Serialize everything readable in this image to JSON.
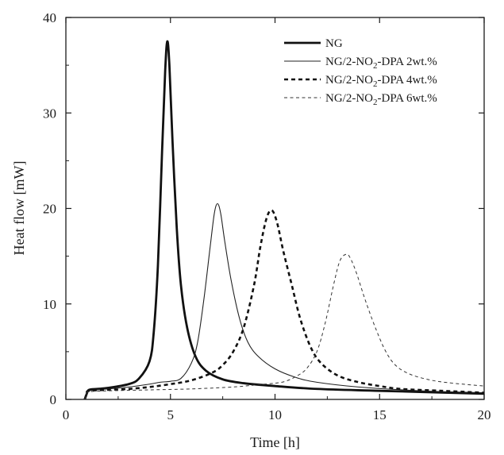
{
  "chart_data": {
    "type": "line",
    "title": "",
    "xlabel": "Time [h]",
    "ylabel": "Heat flow [mW]",
    "xlim": [
      0,
      20
    ],
    "ylim": [
      0,
      40
    ],
    "xticks": [
      "0",
      "5",
      "10",
      "15",
      "20"
    ],
    "yticks": [
      "0",
      "10",
      "20",
      "30",
      "40"
    ],
    "grid": false,
    "legend_position": "top-right",
    "series": [
      {
        "name": "NG",
        "legend_parts": [
          "NG",
          "",
          ""
        ],
        "style": "solid-thick",
        "color": "#111111",
        "x": [
          0.9,
          1.0,
          1.1,
          1.5,
          2.0,
          3.0,
          3.5,
          4.0,
          4.2,
          4.4,
          4.6,
          4.75,
          4.85,
          4.95,
          5.1,
          5.3,
          5.5,
          5.8,
          6.2,
          6.7,
          7.5,
          8.5,
          10,
          12,
          15,
          20
        ],
        "y": [
          0.0,
          0.6,
          1.0,
          1.1,
          1.2,
          1.6,
          2.2,
          4.0,
          7.0,
          14.0,
          26.0,
          34.5,
          37.5,
          35.0,
          27.0,
          18.0,
          12.0,
          7.5,
          4.5,
          3.0,
          2.1,
          1.7,
          1.4,
          1.1,
          0.9,
          0.6
        ]
      },
      {
        "name": "NG/2-NO₂-DPA 2wt.%",
        "legend_parts": [
          "NG/2-NO",
          "2",
          "-DPA 2wt.%"
        ],
        "style": "solid-thin",
        "color": "#222222",
        "x": [
          0.9,
          1.0,
          1.1,
          2.0,
          3.0,
          4.0,
          4.5,
          5.0,
          5.5,
          6.0,
          6.3,
          6.6,
          6.9,
          7.1,
          7.25,
          7.4,
          7.6,
          7.9,
          8.3,
          8.7,
          9.2,
          10,
          11,
          12,
          14,
          17,
          20
        ],
        "y": [
          0.0,
          0.6,
          0.9,
          1.1,
          1.3,
          1.6,
          1.8,
          1.9,
          2.2,
          3.8,
          6.0,
          10.5,
          16.0,
          19.5,
          20.5,
          19.5,
          16.5,
          12.5,
          8.5,
          6.0,
          4.5,
          3.2,
          2.3,
          1.8,
          1.3,
          0.9,
          0.7
        ]
      },
      {
        "name": "NG/2-NO₂-DPA 4wt.%",
        "legend_parts": [
          "NG/2-NO",
          "2",
          "-DPA  4wt.%"
        ],
        "style": "dashed-thick",
        "color": "#111111",
        "x": [
          0.9,
          1.0,
          1.1,
          2.0,
          3.0,
          4.0,
          5.0,
          6.0,
          7.0,
          7.5,
          8.0,
          8.5,
          9.0,
          9.3,
          9.6,
          9.85,
          10.1,
          10.4,
          10.8,
          11.2,
          11.7,
          12.2,
          13,
          14,
          15,
          16,
          18,
          20
        ],
        "y": [
          0.0,
          0.6,
          0.9,
          1.0,
          1.1,
          1.3,
          1.6,
          2.0,
          2.8,
          3.6,
          5.0,
          7.5,
          12.0,
          16.0,
          19.0,
          19.8,
          18.5,
          15.5,
          12.0,
          8.5,
          5.5,
          3.8,
          2.5,
          1.8,
          1.4,
          1.1,
          0.9,
          0.7
        ]
      },
      {
        "name": "NG/2-NO₂-DPA 6wt.%",
        "legend_parts": [
          "NG/2-NO",
          "2",
          "-DPA  6wt.%"
        ],
        "style": "dashed-thin",
        "color": "#333333",
        "x": [
          0.9,
          1.0,
          1.1,
          2.0,
          4.0,
          6.0,
          8.0,
          9.0,
          10.0,
          10.5,
          11.0,
          11.5,
          12.0,
          12.4,
          12.8,
          13.1,
          13.4,
          13.6,
          13.9,
          14.3,
          14.8,
          15.3,
          15.8,
          16.5,
          17.5,
          18.5,
          20
        ],
        "y": [
          0.0,
          0.6,
          0.8,
          0.9,
          1.0,
          1.1,
          1.3,
          1.5,
          1.7,
          1.9,
          2.4,
          3.2,
          5.0,
          8.0,
          12.0,
          14.5,
          15.2,
          14.8,
          13.2,
          10.5,
          7.5,
          5.0,
          3.5,
          2.6,
          2.0,
          1.7,
          1.4
        ]
      }
    ]
  }
}
